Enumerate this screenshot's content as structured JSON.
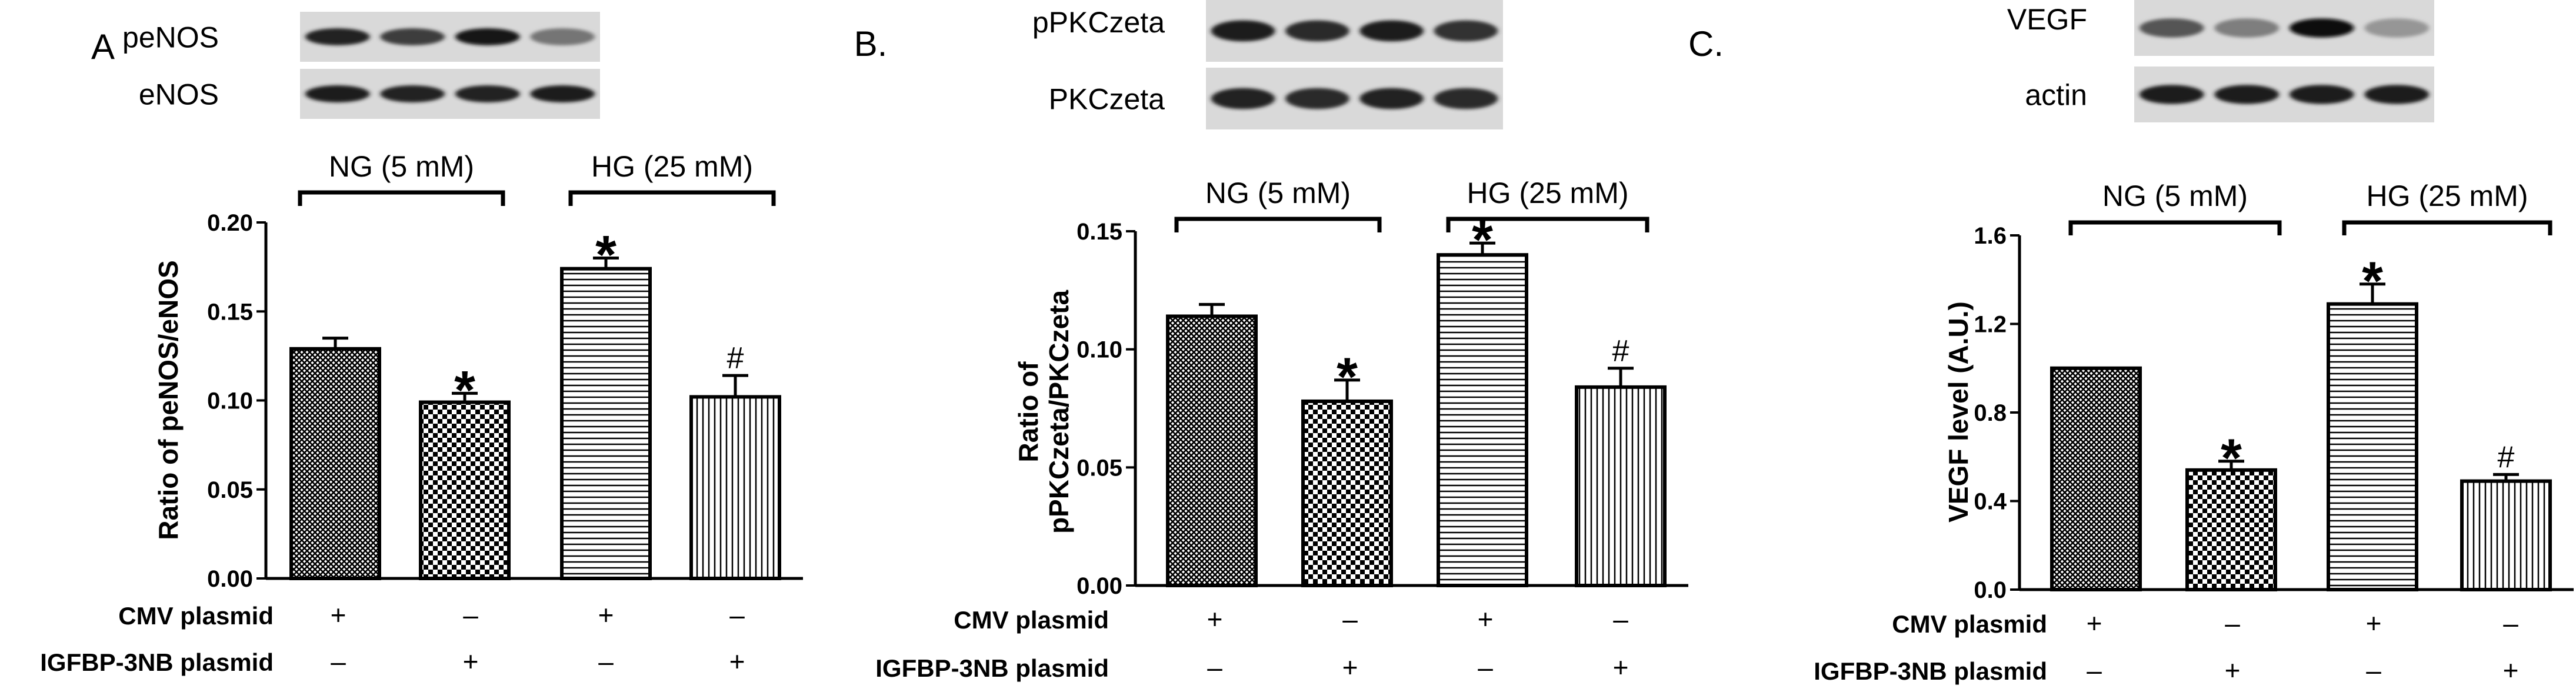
{
  "chart_data": [
    {
      "type": "bar",
      "panel_label": "A",
      "blots": [
        {
          "label": "peNOS",
          "intensity": [
            0.85,
            0.7,
            0.95,
            0.35
          ]
        },
        {
          "label": "eNOS",
          "intensity": [
            0.9,
            0.85,
            0.85,
            0.9
          ]
        }
      ],
      "group_labels": [
        "NG (5 mM)",
        "HG (25 mM)"
      ],
      "ylabel": "Ratio of peNOS/eNOS",
      "ylim": [
        0,
        0.2
      ],
      "yticks": [
        "0.00",
        "0.05",
        "0.10",
        "0.15",
        "0.20"
      ],
      "values": [
        0.129,
        0.099,
        0.174,
        0.102
      ],
      "errors": [
        0.006,
        0.005,
        0.006,
        0.012
      ],
      "patterns": [
        "crosshatch",
        "checker",
        "horizontal",
        "vertical"
      ],
      "markers": [
        "",
        "*",
        "*",
        "#"
      ],
      "treatments": [
        {
          "label": "CMV plasmid",
          "signs": [
            "+",
            "–",
            "+",
            "–"
          ]
        },
        {
          "label": "IGFBP-3NB plasmid",
          "signs": [
            "–",
            "+",
            "–",
            "+"
          ]
        }
      ]
    },
    {
      "type": "bar",
      "panel_label": "B.",
      "blots": [
        {
          "label": "pPKCzeta",
          "intensity": [
            0.9,
            0.8,
            0.9,
            0.75
          ]
        },
        {
          "label": "PKCzeta",
          "intensity": [
            0.85,
            0.8,
            0.85,
            0.8
          ]
        }
      ],
      "group_labels": [
        "NG (5 mM)",
        "HG (25 mM)"
      ],
      "ylabel": [
        "Ratio of",
        "pPKCzeta/PKCzeta"
      ],
      "ylim": [
        0,
        0.15
      ],
      "yticks": [
        "0.00",
        "0.05",
        "0.10",
        "0.15"
      ],
      "values": [
        0.114,
        0.078,
        0.14,
        0.084
      ],
      "errors": [
        0.005,
        0.009,
        0.005,
        0.008
      ],
      "patterns": [
        "crosshatch",
        "checker",
        "horizontal",
        "vertical"
      ],
      "markers": [
        "",
        "*",
        "*",
        "#"
      ],
      "treatments": [
        {
          "label": "CMV plasmid",
          "signs": [
            "+",
            "–",
            "+",
            "–"
          ]
        },
        {
          "label": "IGFBP-3NB plasmid",
          "signs": [
            "–",
            "+",
            "–",
            "+"
          ]
        }
      ]
    },
    {
      "type": "bar",
      "panel_label": "C.",
      "blots": [
        {
          "label": "VEGF",
          "intensity": [
            0.55,
            0.3,
            1.0,
            0.15
          ]
        },
        {
          "label": "actin",
          "intensity": [
            0.9,
            0.9,
            0.9,
            0.9
          ]
        }
      ],
      "group_labels": [
        "NG (5 mM)",
        "HG (25 mM)"
      ],
      "ylabel": "VEGF level (A.U.)",
      "ylim": [
        0,
        1.6
      ],
      "yticks": [
        "0.0",
        "0.4",
        "0.8",
        "1.2",
        "1.6"
      ],
      "values": [
        1.0,
        0.54,
        1.29,
        0.49
      ],
      "errors": [
        0.0,
        0.04,
        0.09,
        0.03
      ],
      "patterns": [
        "crosshatch",
        "checker",
        "horizontal",
        "vertical"
      ],
      "markers": [
        "",
        "*",
        "*",
        "#"
      ],
      "treatments": [
        {
          "label": "CMV plasmid",
          "signs": [
            "+",
            "–",
            "+",
            "–"
          ]
        },
        {
          "label": "IGFBP-3NB plasmid",
          "signs": [
            "–",
            "+",
            "–",
            "+"
          ]
        }
      ]
    }
  ]
}
